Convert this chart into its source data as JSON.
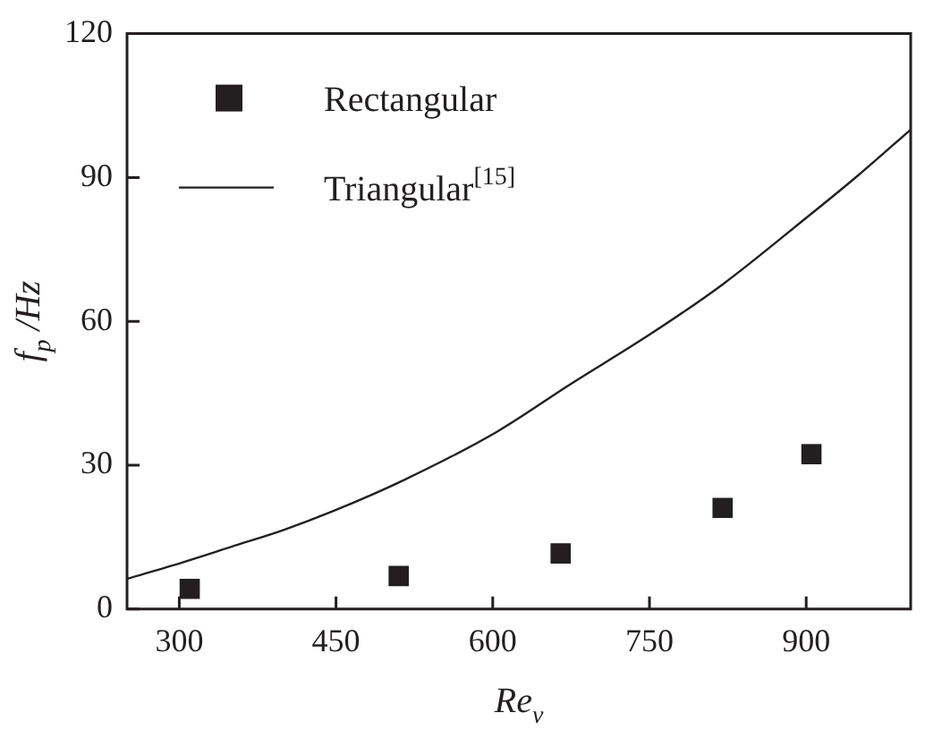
{
  "chart_data": {
    "type": "scatter",
    "xlabel": "Re$_{v}$",
    "ylabel": "f$_{p}$ /Hz",
    "xlim": [
      250,
      1000
    ],
    "xticks": [
      300,
      450,
      600,
      750,
      900
    ],
    "ylim": [
      0,
      120
    ],
    "yticks": [
      0,
      30,
      60,
      90,
      120
    ],
    "grid": false,
    "legend": "top left",
    "series": [
      {
        "name": "Rectangular",
        "marker": "square",
        "color": "#231f20",
        "x": [
          310,
          510,
          665,
          820,
          905
        ],
        "values": [
          4.2,
          6.9,
          11.6,
          21.1,
          32.3
        ]
      },
      {
        "name": "Triangular$^{[15]}$",
        "type": "line",
        "marker": "none",
        "color": "#231f20",
        "x": [
          250,
          304,
          350,
          400,
          447,
          515,
          605,
          673,
          752,
          820,
          899,
          950,
          1000
        ],
        "values": [
          6.3,
          9.8,
          13,
          16.5,
          20.4,
          26.9,
          37.1,
          46.7,
          57.5,
          67.7,
          81.4,
          90.5,
          100
        ]
      }
    ]
  }
}
